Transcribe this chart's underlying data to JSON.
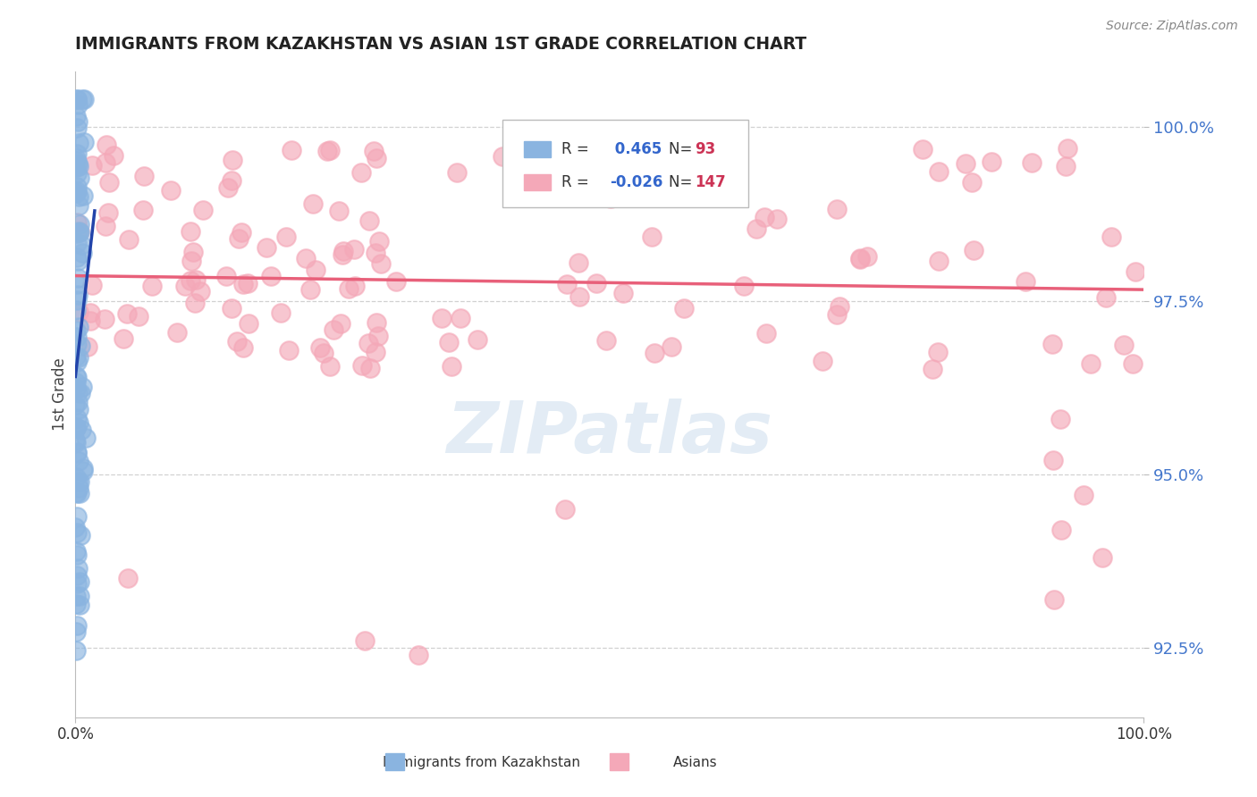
{
  "title": "IMMIGRANTS FROM KAZAKHSTAN VS ASIAN 1ST GRADE CORRELATION CHART",
  "source_text": "Source: ZipAtlas.com",
  "ylabel": "1st Grade",
  "xmin": 0.0,
  "xmax": 100.0,
  "ymin": 91.5,
  "ymax": 100.8,
  "yticks": [
    92.5,
    95.0,
    97.5,
    100.0
  ],
  "ytick_labels": [
    "92.5%",
    "95.0%",
    "97.5%",
    "100.0%"
  ],
  "blue_R": 0.465,
  "blue_N": 93,
  "pink_R": -0.026,
  "pink_N": 147,
  "blue_color": "#8ab4e0",
  "pink_color": "#f4a8b8",
  "blue_line_color": "#2244aa",
  "pink_line_color": "#e8607a",
  "axis_label_color": "#4477cc",
  "background_color": "#ffffff",
  "grid_color": "#cccccc",
  "title_color": "#222222",
  "source_color": "#888888",
  "legend_border_color": "#cccccc",
  "legend_R_label_color": "#333333",
  "legend_R_value_blue_color": "#3366cc",
  "legend_N_value_color": "#cc3355",
  "bottom_legend_text_color": "#333333"
}
